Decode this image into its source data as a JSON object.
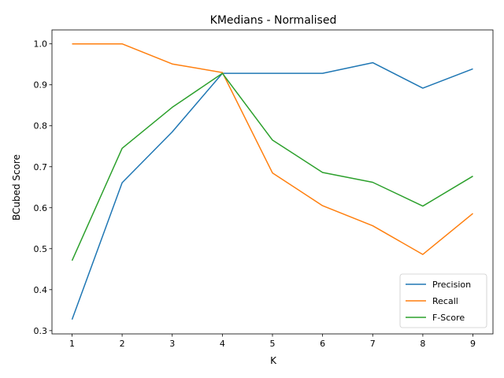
{
  "chart_data": {
    "type": "line",
    "title": "KMedians - Normalised",
    "xlabel": "K",
    "ylabel": "BCubed Score",
    "x": [
      1,
      2,
      3,
      4,
      5,
      6,
      7,
      8,
      9
    ],
    "xlim": [
      0.6,
      9.4
    ],
    "ylim": [
      0.292,
      1.034
    ],
    "xticks": [
      1,
      2,
      3,
      4,
      5,
      6,
      7,
      8,
      9
    ],
    "yticks": [
      0.3,
      0.4,
      0.5,
      0.6,
      0.7,
      0.8,
      0.9,
      1.0
    ],
    "ytick_labels": [
      "0.3",
      "0.4",
      "0.5",
      "0.6",
      "0.7",
      "0.8",
      "0.9",
      "1.0"
    ],
    "grid": false,
    "legend_position": "lower right",
    "series": [
      {
        "name": "Precision",
        "color": "#1f77b4",
        "values": [
          0.327,
          0.661,
          0.785,
          0.928,
          0.928,
          0.928,
          0.954,
          0.892,
          0.939
        ]
      },
      {
        "name": "Recall",
        "color": "#ff7f0e",
        "values": [
          1.0,
          1.0,
          0.951,
          0.93,
          0.685,
          0.605,
          0.556,
          0.486,
          0.586
        ]
      },
      {
        "name": "F-Score",
        "color": "#2ca02c",
        "values": [
          0.471,
          0.745,
          0.845,
          0.928,
          0.765,
          0.686,
          0.662,
          0.604,
          0.677
        ]
      }
    ]
  }
}
